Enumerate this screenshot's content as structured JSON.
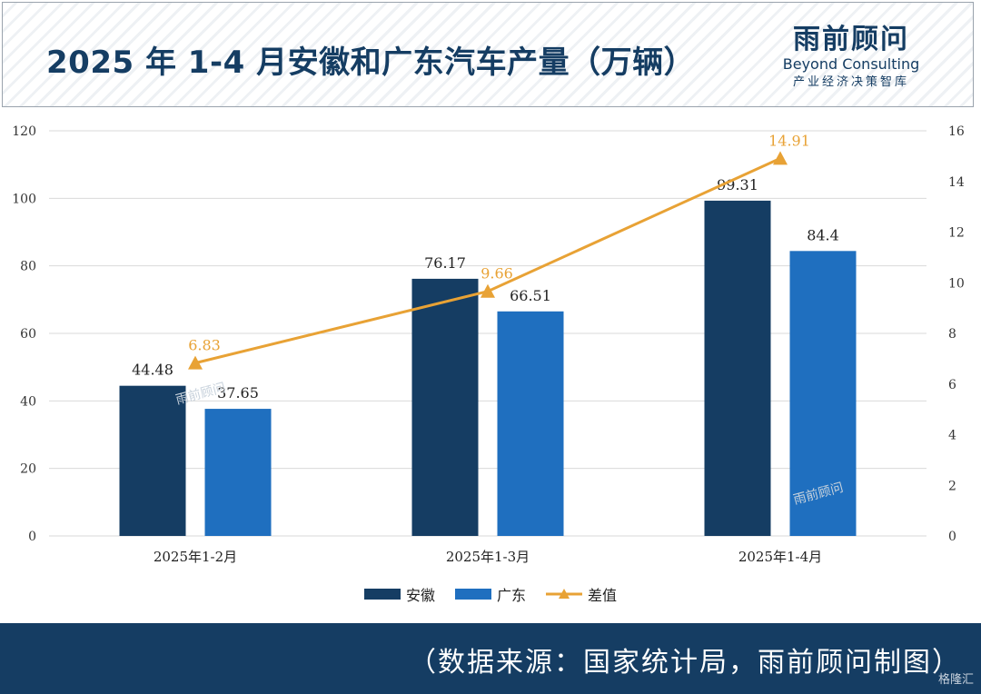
{
  "header": {
    "title": "2025 年 1-4 月安徽和广东汽车产量（万辆）",
    "logo_cn": "雨前顾问",
    "logo_en": "Beyond Consulting",
    "logo_sub": "产业经济决策智库"
  },
  "watermark": "雨前顾问",
  "corner_watermark": "格隆汇",
  "footer": {
    "source": "（数据来源：国家统计局，雨前顾问制图）"
  },
  "colors": {
    "anhui": "#153d63",
    "guangdong": "#1f6fbf",
    "diff": "#e8a235",
    "grid": "#d9d9d9"
  },
  "chart_data": {
    "type": "bar",
    "title": "2025 年 1-4 月安徽和广东汽车产量（万辆）",
    "categories": [
      "2025年1-2月",
      "2025年1-3月",
      "2025年1-4月"
    ],
    "series": [
      {
        "name": "安徽",
        "type": "bar",
        "axis": "left",
        "values": [
          44.48,
          76.17,
          99.31
        ]
      },
      {
        "name": "广东",
        "type": "bar",
        "axis": "left",
        "values": [
          37.65,
          66.51,
          84.4
        ]
      },
      {
        "name": "差值",
        "type": "line",
        "marker": "triangle",
        "axis": "right",
        "values": [
          6.83,
          9.66,
          14.91
        ]
      }
    ],
    "ylim": [
      0,
      120
    ],
    "yticks": [
      0,
      20,
      40,
      60,
      80,
      100,
      120
    ],
    "y2lim": [
      0,
      16
    ],
    "y2ticks": [
      0,
      2,
      4,
      6,
      8,
      10,
      12,
      14,
      16
    ],
    "legend": "bottom",
    "grid": true
  }
}
